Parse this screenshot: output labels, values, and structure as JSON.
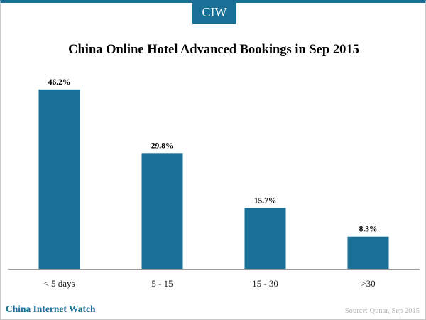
{
  "brand": {
    "logo_text": "CIW"
  },
  "chart_data": {
    "type": "bar",
    "title": "China Online Hotel Advanced Bookings in Sep 2015",
    "categories": [
      "< 5 days",
      "5 - 15",
      "15 - 30",
      ">30"
    ],
    "values": [
      46.2,
      29.8,
      15.7,
      8.3
    ],
    "data_labels": [
      "46.2%",
      "29.8%",
      "15.7%",
      "8.3%"
    ],
    "ylim": [
      0,
      48
    ],
    "grid": false,
    "bar_color": "#1a6f96"
  },
  "footer": {
    "publisher": "China Internet Watch",
    "source": "Source: Qunar, Sep 2015"
  }
}
